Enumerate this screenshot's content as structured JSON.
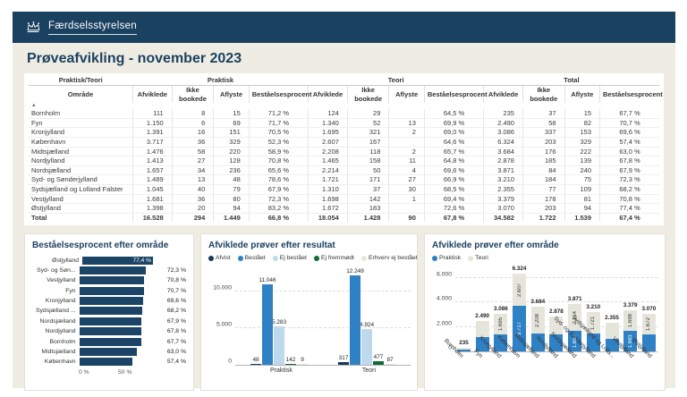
{
  "app": {
    "brand": "Færdselsstyrelsen",
    "title": "Prøveafvikling - november 2023"
  },
  "colors": {
    "navy": "#1B4161",
    "bar_navy": "#1C4466",
    "blue": "#2E81C4",
    "light_blue": "#BFD9EC",
    "green": "#0E6B37",
    "light_gray": "#E6E5DB",
    "canvas": "#EFEDE3"
  },
  "table": {
    "col_groups": [
      {
        "label": "Praktisk/Teori",
        "span": 1
      },
      {
        "label": "Praktisk",
        "span": 4
      },
      {
        "label": "Teori",
        "span": 4
      },
      {
        "label": "Total",
        "span": 4
      }
    ],
    "area_header": "Område",
    "sort_icon": "▲",
    "sub_headers": [
      "Afviklede",
      "Ikke bookede",
      "Aflyste",
      "Beståelsesprocent"
    ],
    "rows": [
      {
        "area": "Bornholm",
        "cells": [
          "111",
          "8",
          "15",
          "71,2 %",
          "124",
          "29",
          "",
          "64,5 %",
          "235",
          "37",
          "15",
          "67,7 %"
        ]
      },
      {
        "area": "Fyn",
        "cells": [
          "1.150",
          "6",
          "69",
          "71,7 %",
          "1.340",
          "52",
          "13",
          "69,9 %",
          "2.490",
          "58",
          "82",
          "70,7 %"
        ]
      },
      {
        "area": "Kronjylland",
        "cells": [
          "1.391",
          "16",
          "151",
          "70,5 %",
          "1.695",
          "321",
          "2",
          "69,0 %",
          "3.086",
          "337",
          "153",
          "69,6 %"
        ]
      },
      {
        "area": "København",
        "cells": [
          "3.717",
          "36",
          "329",
          "52,3 %",
          "2.607",
          "167",
          "",
          "64,6 %",
          "6.324",
          "203",
          "329",
          "57,4 %"
        ]
      },
      {
        "area": "Midtsjælland",
        "cells": [
          "1.476",
          "58",
          "220",
          "58,9 %",
          "2.208",
          "118",
          "2",
          "65,7 %",
          "3.684",
          "176",
          "222",
          "63,0 %"
        ]
      },
      {
        "area": "Nordjylland",
        "cells": [
          "1.413",
          "27",
          "128",
          "70,8 %",
          "1.465",
          "158",
          "11",
          "64,8 %",
          "2.878",
          "185",
          "139",
          "67,8 %"
        ]
      },
      {
        "area": "Nordsjælland",
        "cells": [
          "1.657",
          "34",
          "236",
          "65,6 %",
          "2.214",
          "50",
          "4",
          "69,6 %",
          "3.871",
          "84",
          "240",
          "67,9 %"
        ]
      },
      {
        "area": "Syd- og Sønderjylland",
        "cells": [
          "1.489",
          "13",
          "48",
          "78,6 %",
          "1.721",
          "171",
          "27",
          "66,9 %",
          "3.210",
          "184",
          "75",
          "72,3 %"
        ]
      },
      {
        "area": "Sydsjælland og Lolland Falster",
        "cells": [
          "1.045",
          "40",
          "79",
          "67,9 %",
          "1.310",
          "37",
          "30",
          "68,5 %",
          "2.355",
          "77",
          "109",
          "68,2 %"
        ]
      },
      {
        "area": "Vestjylland",
        "cells": [
          "1.681",
          "36",
          "80",
          "72,3 %",
          "1.698",
          "142",
          "1",
          "69,4 %",
          "3.379",
          "178",
          "81",
          "70,8 %"
        ]
      },
      {
        "area": "Østjylland",
        "cells": [
          "1.398",
          "20",
          "94",
          "83,2 %",
          "1.672",
          "183",
          "",
          "72,6 %",
          "3.070",
          "203",
          "94",
          "77,4 %"
        ]
      },
      {
        "area": "Total",
        "is_total": true,
        "cells": [
          "16.528",
          "294",
          "1.449",
          "66,8 %",
          "18.054",
          "1.428",
          "90",
          "67,8 %",
          "34.582",
          "1.722",
          "1.539",
          "67,4 %"
        ]
      }
    ]
  },
  "chart_data": [
    {
      "type": "bar",
      "orientation": "horizontal",
      "title": "Beståelsesprocent efter område",
      "categories": [
        "Østjylland",
        "Syd- og Søn...",
        "Vestjylland",
        "Fyn",
        "Kronjylland",
        "Sydsjælland ...",
        "Nordsjælland",
        "Nordjylland",
        "Bornholm",
        "Midtsjælland",
        "København"
      ],
      "values": [
        77.4,
        72.3,
        70.8,
        70.7,
        69.6,
        68.2,
        67.9,
        67.8,
        67.7,
        63.0,
        57.4
      ],
      "labels": [
        "77,4 %",
        "72,3 %",
        "70,8 %",
        "70,7 %",
        "69,6 %",
        "68,2 %",
        "67,9 %",
        "67,8 %",
        "67,7 %",
        "63,0 %",
        "57,4 %"
      ],
      "xlim": [
        0,
        100
      ],
      "xticks": [
        "0 %",
        "50 %"
      ],
      "bar_color": "#1C4466"
    },
    {
      "type": "bar",
      "title": "Afviklede prøver efter resultat",
      "categories": [
        "Praktisk",
        "Teori"
      ],
      "series": [
        {
          "name": "Afvist",
          "color": "#17375E",
          "values": [
            48,
            317
          ],
          "labels": [
            "48",
            "317"
          ]
        },
        {
          "name": "Bestået",
          "color": "#2E81C4",
          "values": [
            11046,
            12249
          ],
          "labels": [
            "11.046",
            "12.249"
          ]
        },
        {
          "name": "Ej bestået",
          "color": "#BFD9EC",
          "values": [
            5283,
            4924
          ],
          "labels": [
            "5.283",
            "4.924"
          ]
        },
        {
          "name": "Ej fremmødt",
          "color": "#0E6B37",
          "values": [
            142,
            477
          ],
          "labels": [
            "142",
            "477"
          ]
        },
        {
          "name": "Erhverv ej bestået",
          "color": "#E6E5DB",
          "values": [
            9,
            87
          ],
          "labels": [
            "9",
            "87"
          ]
        }
      ],
      "ylim": [
        0,
        13000
      ],
      "yticks": [
        {
          "v": 0,
          "label": "0"
        },
        {
          "v": 5000,
          "label": "5.000"
        },
        {
          "v": 10000,
          "label": "10.000"
        }
      ]
    },
    {
      "type": "stacked-bar",
      "title": "Afviklede prøver efter område",
      "categories": [
        "Bornholm",
        "Fyn",
        "Kronjylland",
        "København",
        "Midtsjælland",
        "Nordjylland",
        "Nordsjælland",
        "Syd- og Sønderjylland",
        "Sydsjælland og Lolla...",
        "Vestjylland",
        "Østjylland"
      ],
      "series": [
        {
          "name": "Praktisk",
          "color": "#2E81C4",
          "label_color": "#ffffff",
          "values": [
            111,
            1150,
            1391,
            3717,
            1476,
            1413,
            1657,
            1489,
            1045,
            1681,
            1398
          ],
          "labels": [
            null,
            null,
            null,
            "3.717",
            null,
            null,
            "1.657",
            null,
            null,
            "1.681",
            null
          ]
        },
        {
          "name": "Teori",
          "color": "#E6E5DB",
          "label_color": "#333333",
          "values": [
            124,
            1340,
            1695,
            2607,
            2208,
            1465,
            2214,
            1721,
            1310,
            1698,
            1672
          ],
          "labels": [
            null,
            null,
            "1.695",
            "2.607",
            "2.208",
            null,
            "2.214",
            "1.721",
            null,
            "1.698",
            "1.672"
          ]
        }
      ],
      "totals": [
        "235",
        "2.490",
        "3.086",
        "6.324",
        "3.684",
        "2.878",
        "3.871",
        "3.210",
        "2.355",
        "3.379",
        "3.070"
      ],
      "ylim": [
        0,
        6700
      ],
      "yticks": [
        {
          "v": 0,
          "label": "0"
        },
        {
          "v": 2000,
          "label": "2.000"
        },
        {
          "v": 4000,
          "label": "4.000"
        },
        {
          "v": 6000,
          "label": "6.000"
        }
      ]
    }
  ]
}
